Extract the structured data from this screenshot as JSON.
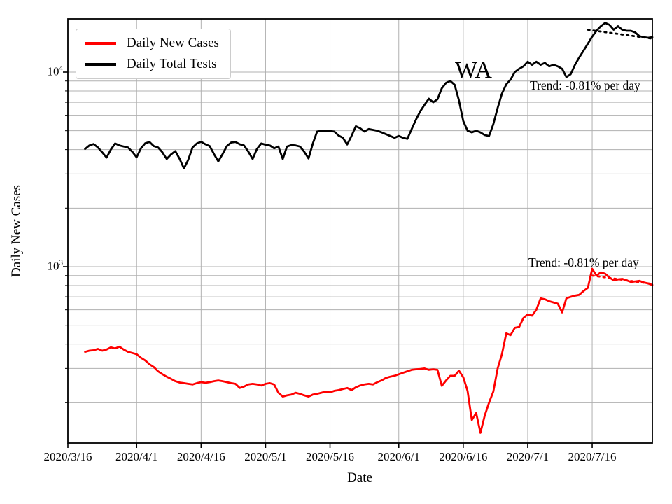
{
  "chart_data": {
    "type": "line",
    "title": "",
    "xlabel": "Date",
    "ylabel": "Daily New Cases",
    "y_scale": "log",
    "ylim": [
      124,
      18600
    ],
    "grid": "both",
    "legend_position": "upper left",
    "x_ticks": [
      {
        "label": "2020/3/16",
        "day": 0
      },
      {
        "label": "2020/4/1",
        "day": 16
      },
      {
        "label": "2020/4/16",
        "day": 31
      },
      {
        "label": "2020/5/1",
        "day": 46
      },
      {
        "label": "2020/5/16",
        "day": 61
      },
      {
        "label": "2020/6/1",
        "day": 77
      },
      {
        "label": "2020/6/16",
        "day": 92
      },
      {
        "label": "2020/7/1",
        "day": 107
      },
      {
        "label": "2020/7/16",
        "day": 122
      }
    ],
    "y_ticks": [
      {
        "base": "10",
        "exp": "4",
        "value": 10000
      },
      {
        "base": "10",
        "exp": "3",
        "value": 1000
      }
    ],
    "x_range_days": 136,
    "series_start_day_offset": 4,
    "series_start_date": "2020/3/20",
    "series_end_date": "2020/7/30",
    "frequency": "daily",
    "series": [
      {
        "name": "Daily New Cases",
        "color": "#ff0000",
        "values": [
          365,
          370,
          372,
          378,
          370,
          375,
          385,
          380,
          388,
          375,
          365,
          360,
          355,
          340,
          330,
          315,
          305,
          290,
          280,
          272,
          265,
          258,
          254,
          252,
          250,
          248,
          252,
          255,
          253,
          255,
          258,
          260,
          258,
          255,
          252,
          250,
          238,
          242,
          248,
          250,
          248,
          245,
          250,
          252,
          248,
          225,
          215,
          218,
          220,
          225,
          222,
          218,
          215,
          220,
          222,
          225,
          228,
          226,
          230,
          232,
          235,
          238,
          232,
          240,
          245,
          248,
          250,
          248,
          255,
          260,
          268,
          272,
          275,
          280,
          285,
          290,
          295,
          297,
          298,
          300,
          295,
          297,
          295,
          244,
          260,
          275,
          275,
          292,
          270,
          230,
          163,
          177,
          140,
          172,
          200,
          228,
          300,
          355,
          454,
          445,
          485,
          490,
          545,
          568,
          560,
          600,
          688,
          680,
          665,
          655,
          645,
          582,
          688,
          700,
          710,
          717,
          750,
          779,
          975,
          900,
          935,
          920,
          880,
          850,
          860,
          865,
          850,
          835,
          840,
          845,
          830,
          820,
          805
        ]
      },
      {
        "name": "Daily Total Tests",
        "color": "#000000",
        "values": [
          4030,
          4200,
          4270,
          4100,
          3870,
          3640,
          4000,
          4300,
          4200,
          4150,
          4100,
          3900,
          3650,
          4060,
          4310,
          4380,
          4170,
          4100,
          3870,
          3580,
          3780,
          3930,
          3590,
          3200,
          3540,
          4100,
          4300,
          4390,
          4260,
          4170,
          3790,
          3480,
          3790,
          4170,
          4350,
          4380,
          4260,
          4200,
          3900,
          3580,
          4030,
          4300,
          4240,
          4200,
          4060,
          4150,
          3580,
          4150,
          4220,
          4200,
          4150,
          3900,
          3600,
          4300,
          4950,
          5000,
          5000,
          4980,
          4950,
          4720,
          4600,
          4250,
          4700,
          5270,
          5150,
          4950,
          5100,
          5050,
          5000,
          4900,
          4800,
          4700,
          4600,
          4700,
          4600,
          4540,
          5100,
          5700,
          6300,
          6800,
          7300,
          7000,
          7250,
          8250,
          8800,
          9000,
          8600,
          7150,
          5600,
          5000,
          4900,
          5000,
          4900,
          4750,
          4700,
          5400,
          6550,
          7750,
          8650,
          9150,
          10000,
          10400,
          10700,
          11300,
          10900,
          11300,
          10900,
          11150,
          10700,
          10900,
          10700,
          10400,
          9430,
          9750,
          10900,
          11900,
          12900,
          14000,
          15200,
          16300,
          17200,
          17900,
          17500,
          16500,
          17200,
          16500,
          16300,
          16300,
          16000,
          15300,
          15100,
          15000,
          15100
        ]
      }
    ],
    "trend_lines": [
      {
        "series": "Daily Total Tests",
        "color": "#000000",
        "style": "dotted",
        "start_index": 117,
        "end_index": 132,
        "start_value": 16500,
        "end_value": 14850
      },
      {
        "series": "Daily New Cases",
        "color": "#ff0000",
        "style": "dotted",
        "start_index": 118,
        "end_index": 132,
        "start_value": 900,
        "end_value": 815
      }
    ],
    "annotations": {
      "state": "WA",
      "trend_top": "Trend: -0.81% per day",
      "trend_bottom": "Trend: -0.81% per day"
    }
  },
  "legend": {
    "items": [
      {
        "label": "Daily New Cases",
        "color": "#ff0000"
      },
      {
        "label": "Daily Total Tests",
        "color": "#000000"
      }
    ]
  },
  "colors": {
    "grid": "#b0b0b0",
    "spine": "#000000",
    "background": "#ffffff"
  }
}
